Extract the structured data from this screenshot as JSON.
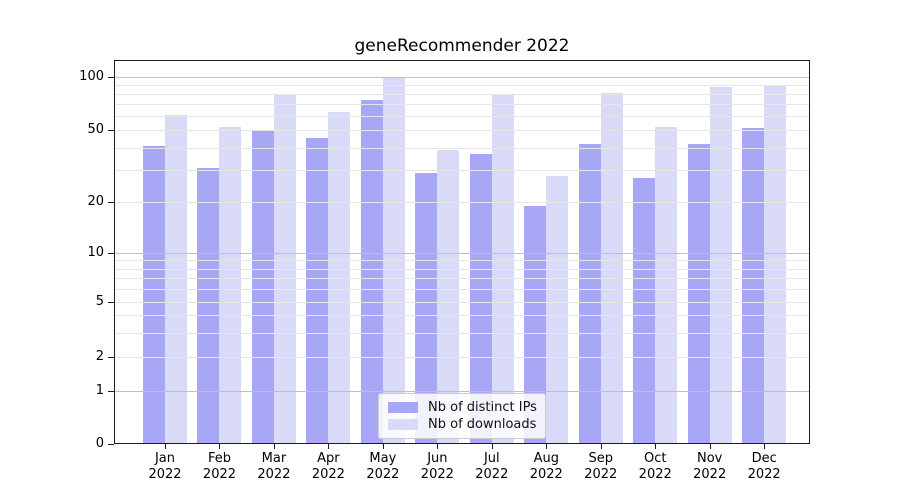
{
  "title": "geneRecommender 2022",
  "chart_data": {
    "type": "bar",
    "title": "geneRecommender 2022",
    "categories": [
      "Jan",
      "Feb",
      "Mar",
      "Apr",
      "May",
      "Jun",
      "Jul",
      "Aug",
      "Sep",
      "Oct",
      "Nov",
      "Dec"
    ],
    "year_label": "2022",
    "series": [
      {
        "name": "Nb of distinct IPs",
        "color": "#a7a7f6",
        "values": [
          41,
          31,
          50,
          45,
          74,
          29,
          37,
          19,
          42,
          27,
          42,
          51
        ]
      },
      {
        "name": "Nb of downloads",
        "color": "#d9d9f8",
        "values": [
          61,
          52,
          80,
          63,
          100,
          39,
          80,
          28,
          81,
          52,
          88,
          90
        ]
      }
    ],
    "yticks": [
      0,
      1,
      2,
      5,
      10,
      20,
      50,
      100
    ],
    "yminor_gridlines": [
      2,
      3,
      4,
      5,
      6,
      7,
      8,
      9,
      20,
      30,
      40,
      50,
      60,
      70,
      80,
      90
    ],
    "ymajor_gridlines": [
      1,
      10,
      100
    ],
    "ylim": [
      0,
      110
    ],
    "yscale": "symlog-like (linear 0-1, log above)",
    "grid": "both",
    "legend_position": "lower center",
    "colors": {
      "grid_major": "#c0c0c0",
      "grid_minor": "#e6e6e6",
      "spine": "#1c1c1c",
      "text": "#000000"
    }
  }
}
